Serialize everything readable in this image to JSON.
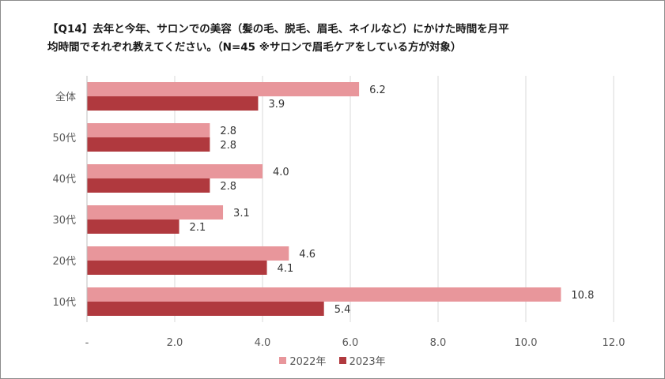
{
  "chart_data": {
    "type": "bar",
    "orientation": "horizontal",
    "title_line1": "【Q14】去年と今年、サロンでの美容（髪の毛、脱毛、眉毛、ネイルなど）にかけた時間を月平",
    "title_line2": "均時間でそれぞれ教えてください。（N=45 ※サロンで眉毛ケアをしている方が対象）",
    "categories": [
      "全体",
      "50代",
      "40代",
      "30代",
      "20代",
      "10代"
    ],
    "series": [
      {
        "name": "2022年",
        "values": [
          6.2,
          2.8,
          4.0,
          3.1,
          4.6,
          10.8
        ],
        "labels": [
          "6.2",
          "2.8",
          "4.0",
          "3.1",
          "4.6",
          "10.8"
        ],
        "color": "#e8969b"
      },
      {
        "name": "2023年",
        "values": [
          3.9,
          2.8,
          2.8,
          2.1,
          4.1,
          5.4
        ],
        "labels": [
          "3.9",
          "2.8",
          "2.8",
          "2.1",
          "4.1",
          "5.4"
        ],
        "color": "#b0393e"
      }
    ],
    "xlim": [
      0,
      12
    ],
    "xticks": [
      0,
      2,
      4,
      6,
      8,
      10,
      12
    ],
    "xtick_labels": [
      "-",
      "2.0",
      "4.0",
      "6.0",
      "8.0",
      "10.0",
      "12.0"
    ],
    "grid": true,
    "legend_position": "bottom"
  }
}
